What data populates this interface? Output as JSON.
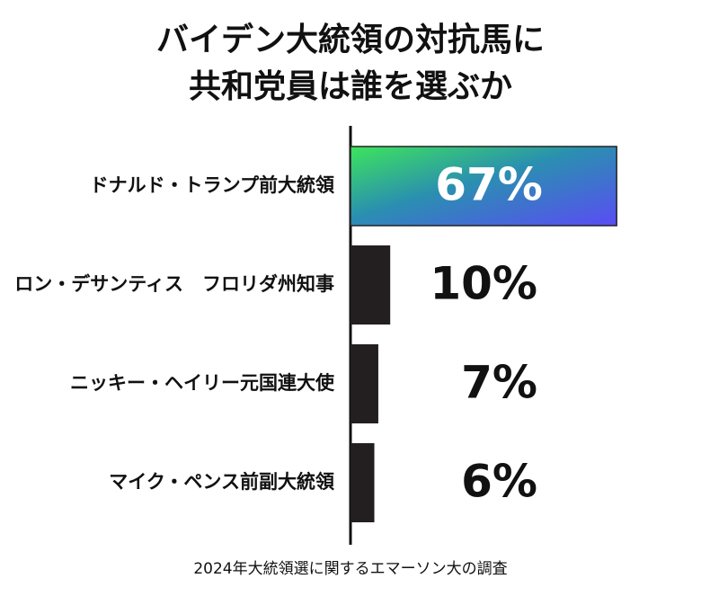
{
  "chart_data": {
    "type": "hbar",
    "title": [
      "バイデン大統領の対抗馬に",
      "共和党員は誰を選ぶか"
    ],
    "categories": [
      "ドナルド・トランプ前大統領",
      "ロン・デサンティス　フロリダ州知事",
      "ニッキー・ヘイリー元国連大使",
      "マイク・ペンス前副大統領"
    ],
    "values": [
      67,
      10,
      7,
      6
    ],
    "value_labels": [
      "67%",
      "10%",
      "7%",
      "6%"
    ],
    "colors": [
      "#3de45c",
      "#231f20",
      "#231f20",
      "#231f20"
    ],
    "source": "2024年大統領選に関するエマーソン大の調査"
  }
}
